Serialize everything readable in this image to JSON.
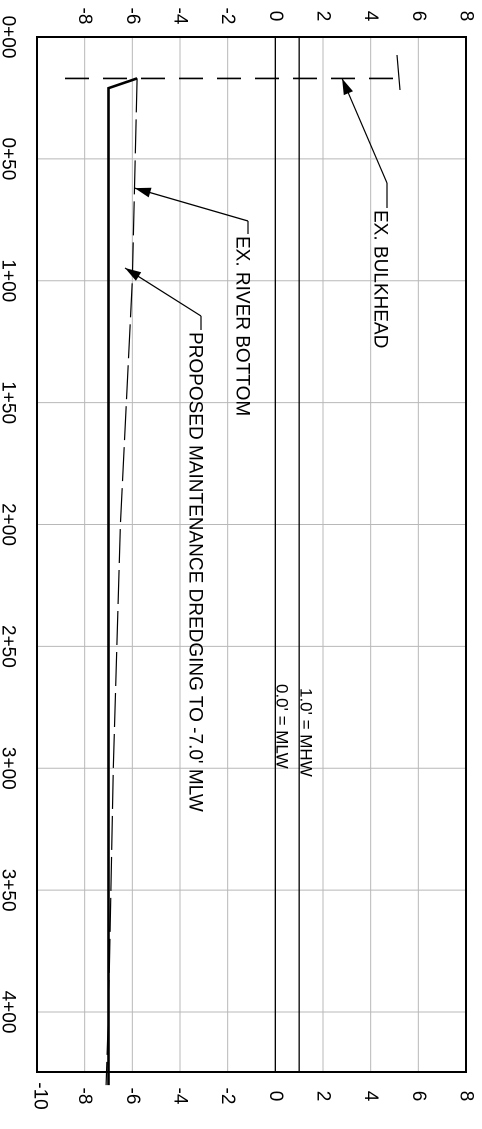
{
  "chart_data": {
    "type": "line",
    "orientation": "rotated-90-clockwise",
    "x": {
      "ticks": [
        "0+00",
        "0+50",
        "1+00",
        "1+50",
        "2+00",
        "2+50",
        "3+00",
        "3+50",
        "4+00"
      ],
      "range": [
        0,
        430
      ]
    },
    "y": {
      "ticks_top": [
        "-8",
        "-6",
        "-4",
        "-2",
        "0",
        "2",
        "4",
        "6",
        "8"
      ],
      "ticks_bottom": [
        "-10",
        "-8",
        "-6",
        "-4",
        "-2",
        "0",
        "2",
        "4",
        "6",
        "8"
      ],
      "range": [
        -10,
        8
      ]
    },
    "grid": true,
    "series": [
      {
        "name": "EX. RIVER BOTTOM",
        "style": "dashed",
        "points": [
          [
            17,
            -5.8
          ],
          [
            100,
            -6.0
          ],
          [
            200,
            -6.5
          ],
          [
            300,
            -6.8
          ],
          [
            400,
            -7.0
          ],
          [
            430,
            -7.1
          ]
        ]
      },
      {
        "name": "PROPOSED MAINTENANCE DREDGING TO -7.0' MLW",
        "style": "solid-thick",
        "points": [
          [
            17,
            -5.8
          ],
          [
            21,
            -7.0
          ],
          [
            430,
            -7.0
          ]
        ]
      },
      {
        "name": "EX. BULKHEAD",
        "style": "long-dash",
        "points": [
          [
            17,
            -5.8
          ],
          [
            17,
            5.4
          ]
        ]
      }
    ],
    "reference_lines": [
      {
        "y": 0.0,
        "label": "0.0' = MLW"
      },
      {
        "y": 1.0,
        "label": "1.0' = MHW"
      }
    ],
    "annotations": [
      {
        "text": "EX. BULKHEAD",
        "target": [
          17,
          2.8
        ]
      },
      {
        "text": "EX. RIVER BOTTOM",
        "target": [
          62,
          -5.9
        ]
      },
      {
        "text": "PROPOSED MAINTENANCE DREDGING TO -7.0' MLW",
        "target": [
          95,
          -6.2
        ]
      }
    ]
  }
}
